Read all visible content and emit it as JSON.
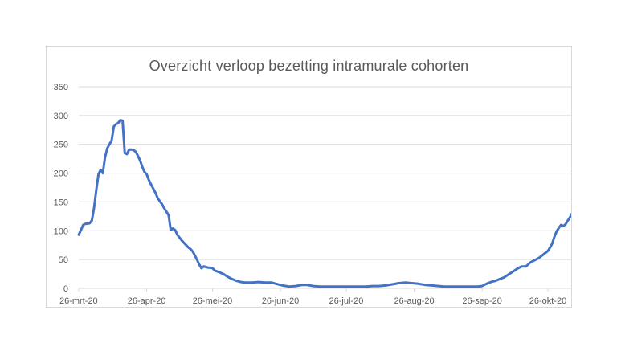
{
  "page": {
    "background_color": "#ffffff"
  },
  "chart_data": {
    "type": "line",
    "title": "Overzicht verloop bezetting intramurale cohorten",
    "xlabel": "",
    "ylabel": "",
    "legend": "none",
    "grid": "horizontal",
    "ylim": [
      0,
      350
    ],
    "y_ticks": [
      0,
      50,
      100,
      150,
      200,
      250,
      300,
      350
    ],
    "x_domain_days": [
      0,
      225
    ],
    "x_tick_days": [
      0,
      31,
      61,
      92,
      122,
      153,
      184,
      214
    ],
    "x_tick_labels": [
      "26-mrt-20",
      "26-apr-20",
      "26-mei-20",
      "26-jun-20",
      "26-jul-20",
      "26-aug-20",
      "26-sep-20",
      "26-okt-20"
    ],
    "colors": {
      "line": "#4472C4",
      "grid": "#d9d9d9",
      "axis_text": "#595959",
      "title_text": "#595959",
      "border": "#d9d9d9",
      "background": "#ffffff"
    },
    "series": [
      {
        "points": [
          [
            0,
            93
          ],
          [
            1,
            101
          ],
          [
            2,
            110
          ],
          [
            3,
            112
          ],
          [
            5,
            113
          ],
          [
            6,
            118
          ],
          [
            7,
            140
          ],
          [
            8,
            170
          ],
          [
            9,
            198
          ],
          [
            10,
            206
          ],
          [
            11,
            200
          ],
          [
            12,
            227
          ],
          [
            13,
            243
          ],
          [
            14,
            250
          ],
          [
            15,
            256
          ],
          [
            16,
            281
          ],
          [
            17,
            285
          ],
          [
            18,
            287
          ],
          [
            19,
            292
          ],
          [
            20,
            291
          ],
          [
            21,
            235
          ],
          [
            22,
            233
          ],
          [
            23,
            241
          ],
          [
            24,
            241
          ],
          [
            25,
            240
          ],
          [
            26,
            237
          ],
          [
            27,
            230
          ],
          [
            28,
            222
          ],
          [
            29,
            211
          ],
          [
            30,
            202
          ],
          [
            31,
            198
          ],
          [
            32,
            188
          ],
          [
            33,
            180
          ],
          [
            34,
            173
          ],
          [
            35,
            166
          ],
          [
            36,
            157
          ],
          [
            37,
            151
          ],
          [
            38,
            146
          ],
          [
            39,
            139
          ],
          [
            40,
            133
          ],
          [
            41,
            127
          ],
          [
            42,
            101
          ],
          [
            43,
            104
          ],
          [
            44,
            101
          ],
          [
            45,
            93
          ],
          [
            46,
            88
          ],
          [
            47,
            83
          ],
          [
            48,
            79
          ],
          [
            49,
            75
          ],
          [
            50,
            71
          ],
          [
            51,
            68
          ],
          [
            52,
            64
          ],
          [
            53,
            57
          ],
          [
            54,
            49
          ],
          [
            55,
            41
          ],
          [
            56,
            35
          ],
          [
            57,
            38
          ],
          [
            58,
            37
          ],
          [
            59,
            36
          ],
          [
            60,
            36
          ],
          [
            61,
            35
          ],
          [
            62,
            31
          ],
          [
            64,
            28
          ],
          [
            66,
            25
          ],
          [
            68,
            20
          ],
          [
            70,
            16
          ],
          [
            72,
            13
          ],
          [
            74,
            11
          ],
          [
            76,
            10
          ],
          [
            79,
            10
          ],
          [
            82,
            11
          ],
          [
            85,
            10
          ],
          [
            88,
            10
          ],
          [
            90,
            8
          ],
          [
            93,
            5
          ],
          [
            96,
            3
          ],
          [
            99,
            4
          ],
          [
            102,
            6
          ],
          [
            104,
            6
          ],
          [
            107,
            4
          ],
          [
            110,
            3
          ],
          [
            113,
            3
          ],
          [
            116,
            3
          ],
          [
            119,
            3
          ],
          [
            122,
            3
          ],
          [
            125,
            3
          ],
          [
            128,
            3
          ],
          [
            131,
            3
          ],
          [
            134,
            4
          ],
          [
            137,
            4
          ],
          [
            140,
            5
          ],
          [
            143,
            7
          ],
          [
            146,
            9
          ],
          [
            149,
            10
          ],
          [
            152,
            9
          ],
          [
            155,
            8
          ],
          [
            158,
            6
          ],
          [
            161,
            5
          ],
          [
            164,
            4
          ],
          [
            167,
            3
          ],
          [
            170,
            3
          ],
          [
            173,
            3
          ],
          [
            176,
            3
          ],
          [
            179,
            3
          ],
          [
            182,
            3
          ],
          [
            184,
            4
          ],
          [
            186,
            8
          ],
          [
            188,
            11
          ],
          [
            190,
            13
          ],
          [
            192,
            16
          ],
          [
            194,
            19
          ],
          [
            196,
            24
          ],
          [
            198,
            29
          ],
          [
            200,
            34
          ],
          [
            202,
            38
          ],
          [
            204,
            38
          ],
          [
            206,
            45
          ],
          [
            208,
            49
          ],
          [
            210,
            53
          ],
          [
            212,
            59
          ],
          [
            214,
            65
          ],
          [
            215,
            71
          ],
          [
            216,
            78
          ],
          [
            217,
            90
          ],
          [
            218,
            99
          ],
          [
            219,
            105
          ],
          [
            220,
            110
          ],
          [
            221,
            108
          ],
          [
            222,
            111
          ],
          [
            223,
            117
          ],
          [
            224,
            123
          ],
          [
            225,
            130
          ]
        ]
      }
    ]
  }
}
